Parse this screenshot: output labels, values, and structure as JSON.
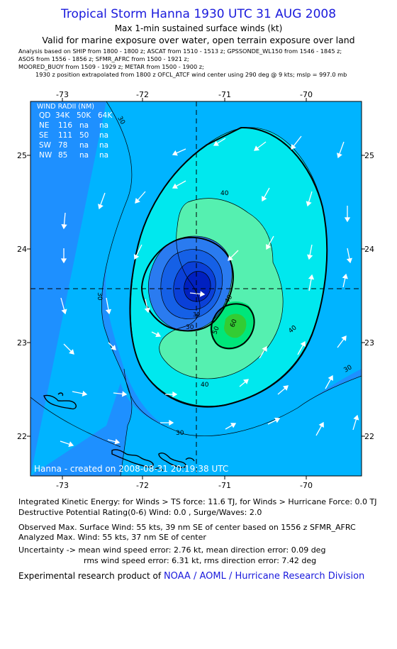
{
  "header": {
    "title": "Tropical Storm Hanna 1930 UTC 31 AUG 2008",
    "subtitle": "Max 1-min sustained surface winds (kt)",
    "valid": "Valid for marine exposure over water, open terrain exposure over land",
    "analysis_lines": [
      "Analysis based on  SHIP from 1800 - 1800 z;  ASCAT from 1510 - 1513 z;  GPSSONDE_WL150 from 1546 - 1845 z;",
      "ASOS from 1556 - 1856 z;  SFMR_AFRC from 1500 - 1921 z;",
      "MOORED_BUOY from 1509 - 1929 z;  METAR from 1500 - 1900 z;",
      "1930 z position extrapolated from 1800 z OFCL_ATCF wind center using 290 deg @ 9 kts; mslp = 997.0 mb"
    ]
  },
  "map": {
    "lon_ticks": [
      "-73",
      "-72",
      "-71",
      "-70"
    ],
    "lat_ticks": [
      "25",
      "24",
      "23",
      "22"
    ],
    "contour_labels": [
      "30",
      "40",
      "50",
      "60",
      "30",
      "40",
      "30",
      "30",
      "30",
      "40",
      "30"
    ],
    "credit": "Hanna - created on 2008-08-31 20:19:38 UTC",
    "colors": {
      "c20": "#1e90ff",
      "c30": "#00b4ff",
      "c40": "#00e8ee",
      "c50": "#55f0b0",
      "c60": "#00e67a",
      "c70": "#33cc33",
      "inner1": "#2a7bf0",
      "inner2": "#1560e6",
      "inner3": "#0a40d8",
      "inner4": "#0020c0"
    }
  },
  "wind_radii": {
    "title": "WIND RADII (NM)",
    "headers": [
      "QD",
      "34K",
      "50K",
      "64K"
    ],
    "rows": [
      [
        "NE",
        "116",
        "na",
        "na"
      ],
      [
        "SE",
        "111",
        "50",
        "na"
      ],
      [
        "SW",
        "78",
        "na",
        "na"
      ],
      [
        "NW",
        "85",
        "na",
        "na"
      ]
    ]
  },
  "footer": {
    "ike": "Integrated Kinetic Energy:  for Winds > TS force: 11.6 TJ,  for Winds > Hurricane Force: 0.0 TJ",
    "dpr": "Destructive Potential Rating(0-6)   Wind: 0.0 , Surge/Waves: 2.0",
    "observed": "Observed Max. Surface Wind: 55 kts, 39 nm SE of center based on 1556 z SFMR_AFRC",
    "analyzed": "Analyzed Max. Wind: 55 kts, 37 nm SE of center",
    "uncertainty1": "Uncertainty -> mean wind speed error: 2.76 kt,   mean direction error: 0.09 deg",
    "uncertainty2": "rms wind speed error: 6.31 kt,   rms direction error: 7.42 deg",
    "product_prefix": "Experimental research product of",
    "product_org": "NOAA / AOML / Hurricane Research Division"
  }
}
